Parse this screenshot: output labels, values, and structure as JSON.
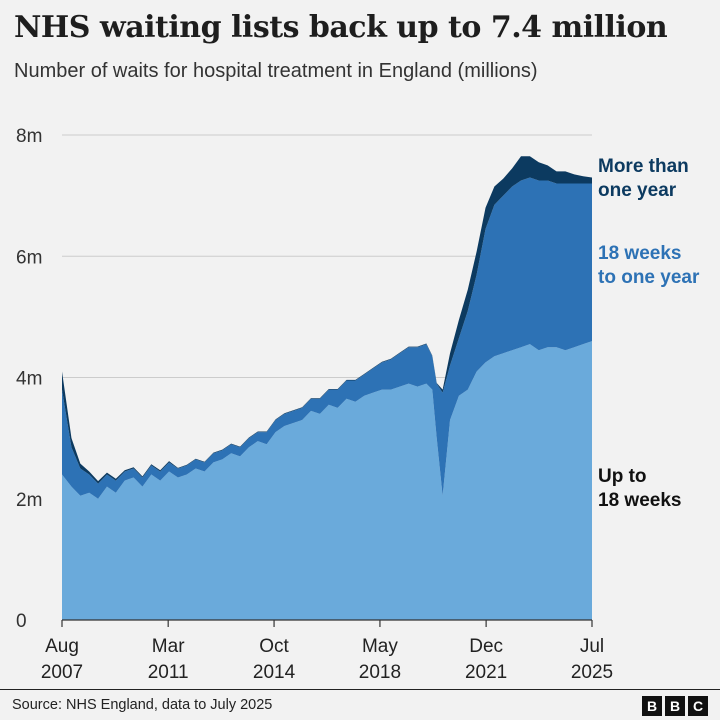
{
  "header": {
    "title": "NHS waiting lists back up to 7.4 million",
    "subtitle": "Number of waits for hospital treatment in England (millions)"
  },
  "footer": {
    "source": "Source: NHS England, data to July 2025",
    "logo_letters": [
      "B",
      "B",
      "C"
    ]
  },
  "colors": {
    "up_to_18_weeks": "#6aaadb",
    "weeks18_to_one_year": "#2d72b5",
    "more_than_one_year": "#0c3a60",
    "label_dark_blue": "#0c3a60",
    "label_mid_blue": "#2d72b5",
    "label_black": "#111111",
    "grid": "#cccccc",
    "background": "#f2f2f2"
  },
  "chart_data": {
    "type": "area",
    "stacked": true,
    "ylim": [
      0,
      8
    ],
    "y_ticks": [
      0,
      2,
      4,
      6,
      8
    ],
    "y_tick_labels": [
      "0",
      "2m",
      "4m",
      "6m",
      "8m"
    ],
    "x_range": [
      2007.58,
      2025.5
    ],
    "x_ticks": [
      {
        "x": 2007.58,
        "line1": "Aug",
        "line2": "2007"
      },
      {
        "x": 2011.17,
        "line1": "Mar",
        "line2": "2011"
      },
      {
        "x": 2014.75,
        "line1": "Oct",
        "line2": "2014"
      },
      {
        "x": 2018.33,
        "line1": "May",
        "line2": "2018"
      },
      {
        "x": 2021.92,
        "line1": "Dec",
        "line2": "2021"
      },
      {
        "x": 2025.5,
        "line1": "Jul",
        "line2": "2025"
      }
    ],
    "grid": true,
    "x": [
      2007.58,
      2007.9,
      2008.2,
      2008.5,
      2008.8,
      2009.1,
      2009.4,
      2009.7,
      2010.0,
      2010.3,
      2010.6,
      2010.9,
      2011.2,
      2011.5,
      2011.8,
      2012.1,
      2012.4,
      2012.7,
      2013.0,
      2013.3,
      2013.6,
      2013.9,
      2014.2,
      2014.5,
      2014.8,
      2015.1,
      2015.4,
      2015.7,
      2016.0,
      2016.3,
      2016.6,
      2016.9,
      2017.2,
      2017.5,
      2017.8,
      2018.1,
      2018.4,
      2018.7,
      2019.0,
      2019.3,
      2019.6,
      2019.9,
      2020.1,
      2020.25,
      2020.45,
      2020.7,
      2021.0,
      2021.3,
      2021.6,
      2021.9,
      2022.2,
      2022.5,
      2022.8,
      2023.1,
      2023.4,
      2023.7,
      2024.0,
      2024.3,
      2024.6,
      2024.9,
      2025.2,
      2025.5
    ],
    "series": [
      {
        "name": "Up to 18 weeks",
        "label_lines": [
          "Up to",
          "18 weeks"
        ],
        "values": [
          2.4,
          2.2,
          2.05,
          2.1,
          2.0,
          2.2,
          2.1,
          2.3,
          2.35,
          2.2,
          2.4,
          2.3,
          2.45,
          2.35,
          2.4,
          2.5,
          2.45,
          2.6,
          2.65,
          2.75,
          2.7,
          2.85,
          2.95,
          2.9,
          3.1,
          3.2,
          3.25,
          3.3,
          3.45,
          3.4,
          3.55,
          3.5,
          3.65,
          3.6,
          3.7,
          3.75,
          3.8,
          3.8,
          3.85,
          3.9,
          3.85,
          3.9,
          3.8,
          3.0,
          2.05,
          3.3,
          3.7,
          3.8,
          4.1,
          4.25,
          4.35,
          4.4,
          4.45,
          4.5,
          4.55,
          4.45,
          4.5,
          4.5,
          4.45,
          4.5,
          4.55,
          4.6
        ]
      },
      {
        "name": "18 weeks to one year",
        "label_lines": [
          "18 weeks",
          "to one year"
        ],
        "values": [
          1.4,
          0.65,
          0.45,
          0.3,
          0.25,
          0.2,
          0.2,
          0.15,
          0.15,
          0.15,
          0.15,
          0.15,
          0.15,
          0.15,
          0.15,
          0.15,
          0.15,
          0.15,
          0.15,
          0.15,
          0.15,
          0.15,
          0.15,
          0.2,
          0.2,
          0.2,
          0.2,
          0.2,
          0.2,
          0.25,
          0.25,
          0.3,
          0.3,
          0.35,
          0.35,
          0.4,
          0.45,
          0.5,
          0.55,
          0.6,
          0.65,
          0.65,
          0.55,
          0.9,
          1.7,
          0.9,
          0.95,
          1.3,
          1.6,
          2.2,
          2.5,
          2.6,
          2.7,
          2.75,
          2.75,
          2.8,
          2.75,
          2.7,
          2.75,
          2.7,
          2.65,
          2.6
        ]
      },
      {
        "name": "More than one year",
        "label_lines": [
          "More than",
          "one year"
        ],
        "values": [
          0.3,
          0.15,
          0.08,
          0.05,
          0.04,
          0.03,
          0.03,
          0.02,
          0.02,
          0.02,
          0.02,
          0.02,
          0.02,
          0.01,
          0.01,
          0.01,
          0.01,
          0.01,
          0.01,
          0.01,
          0.01,
          0.01,
          0.01,
          0.01,
          0.01,
          0.01,
          0.01,
          0.01,
          0.01,
          0.01,
          0.01,
          0.01,
          0.01,
          0.01,
          0.01,
          0.01,
          0.01,
          0.01,
          0.01,
          0.01,
          0.01,
          0.01,
          0.01,
          0.01,
          0.05,
          0.2,
          0.3,
          0.35,
          0.38,
          0.35,
          0.3,
          0.28,
          0.3,
          0.4,
          0.35,
          0.3,
          0.25,
          0.2,
          0.2,
          0.15,
          0.12,
          0.1
        ]
      }
    ]
  }
}
